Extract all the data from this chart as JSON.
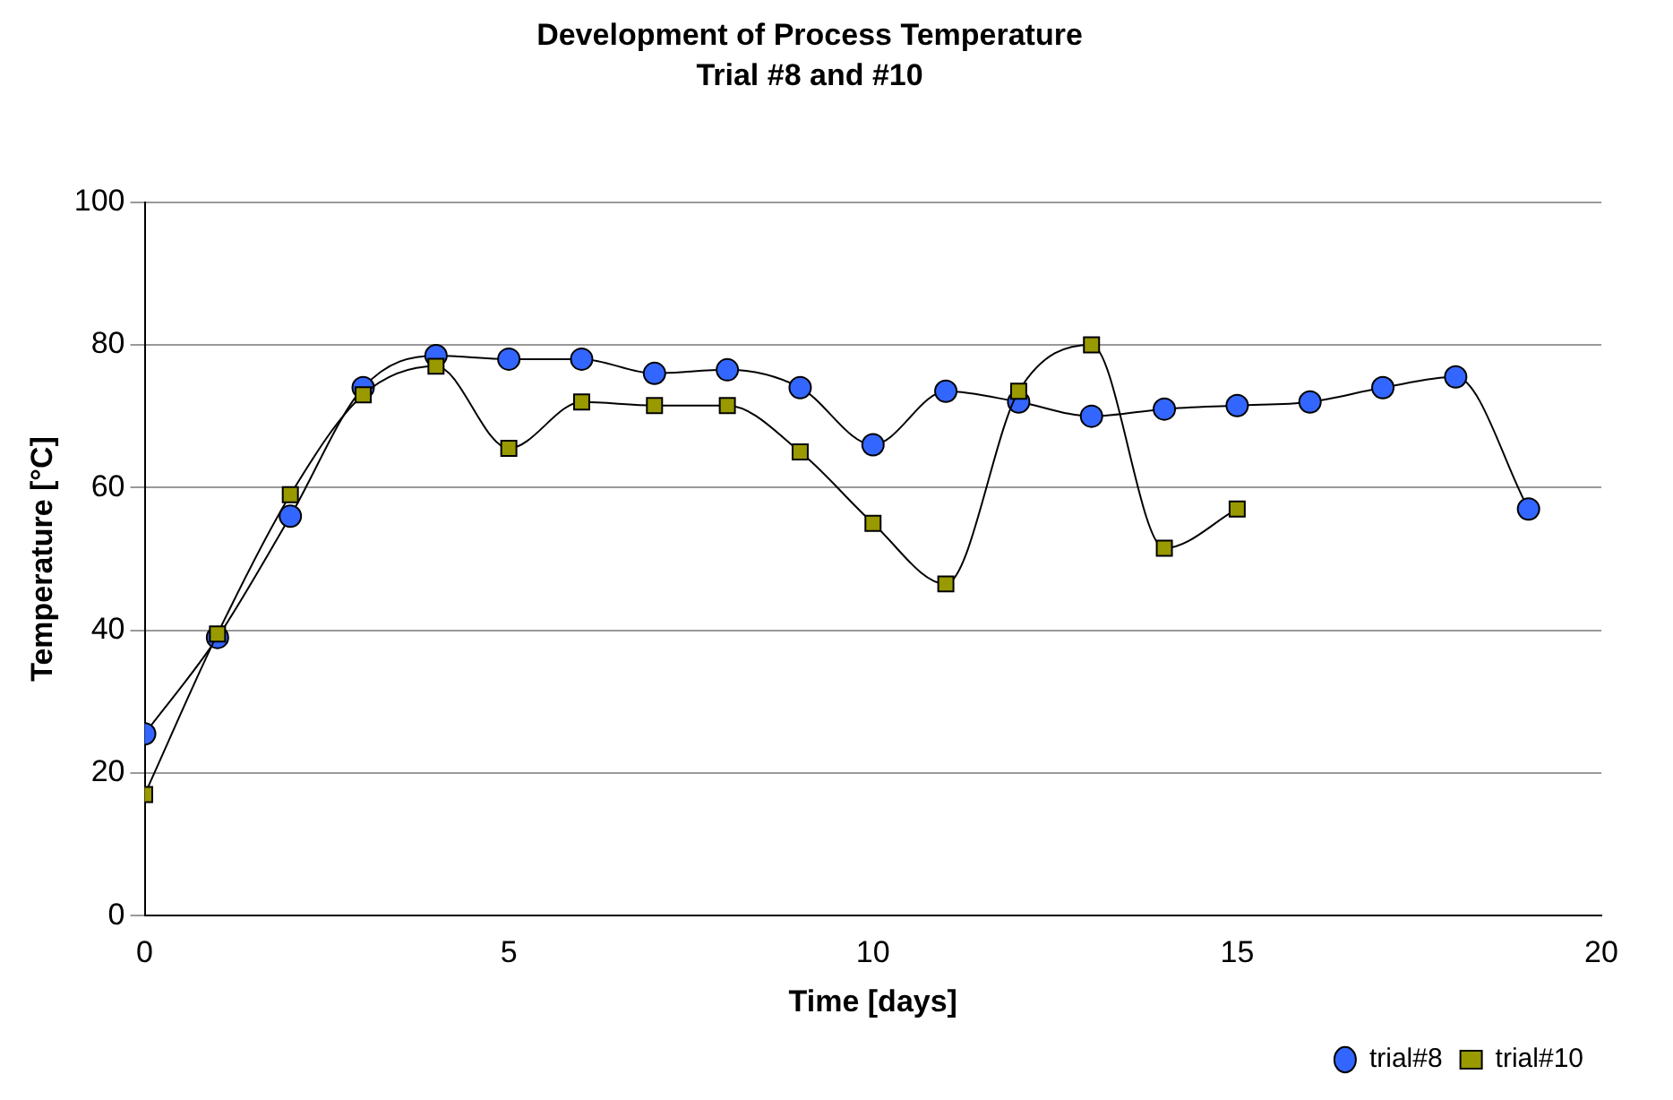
{
  "chart_data": {
    "type": "line",
    "title": "Development of Process Temperature",
    "subtitle": "Trial #8 and #10",
    "xlabel": "Time [days]",
    "ylabel": "Temperature [°C]",
    "xlim": [
      0,
      20
    ],
    "xticks": [
      0,
      5,
      10,
      15,
      20
    ],
    "ylim": [
      0,
      100
    ],
    "yticks": [
      0,
      20,
      40,
      60,
      80,
      100
    ],
    "grid": "y",
    "legend": "bottom right",
    "series": [
      {
        "name": "trial#8",
        "color": "#3366ff",
        "marker": "circle",
        "x": [
          0,
          1,
          2,
          3,
          4,
          5,
          6,
          7,
          8,
          9,
          10,
          11,
          12,
          13,
          14,
          15,
          16,
          17,
          18,
          19
        ],
        "values": [
          25.5,
          39,
          56,
          74,
          78.5,
          78,
          78,
          76,
          76.5,
          74,
          66,
          73.5,
          72,
          70,
          71,
          71.5,
          72,
          74,
          75.5,
          57
        ]
      },
      {
        "name": "trial#10",
        "color": "#999900",
        "marker": "square",
        "x": [
          0,
          1,
          2,
          3,
          4,
          5,
          6,
          7,
          8,
          9,
          10,
          11,
          12,
          13,
          14,
          15
        ],
        "values": [
          17,
          39.5,
          59,
          73,
          77,
          65.5,
          72,
          71.5,
          71.5,
          65,
          55,
          46.5,
          73.5,
          80,
          51.5,
          57
        ]
      }
    ]
  }
}
